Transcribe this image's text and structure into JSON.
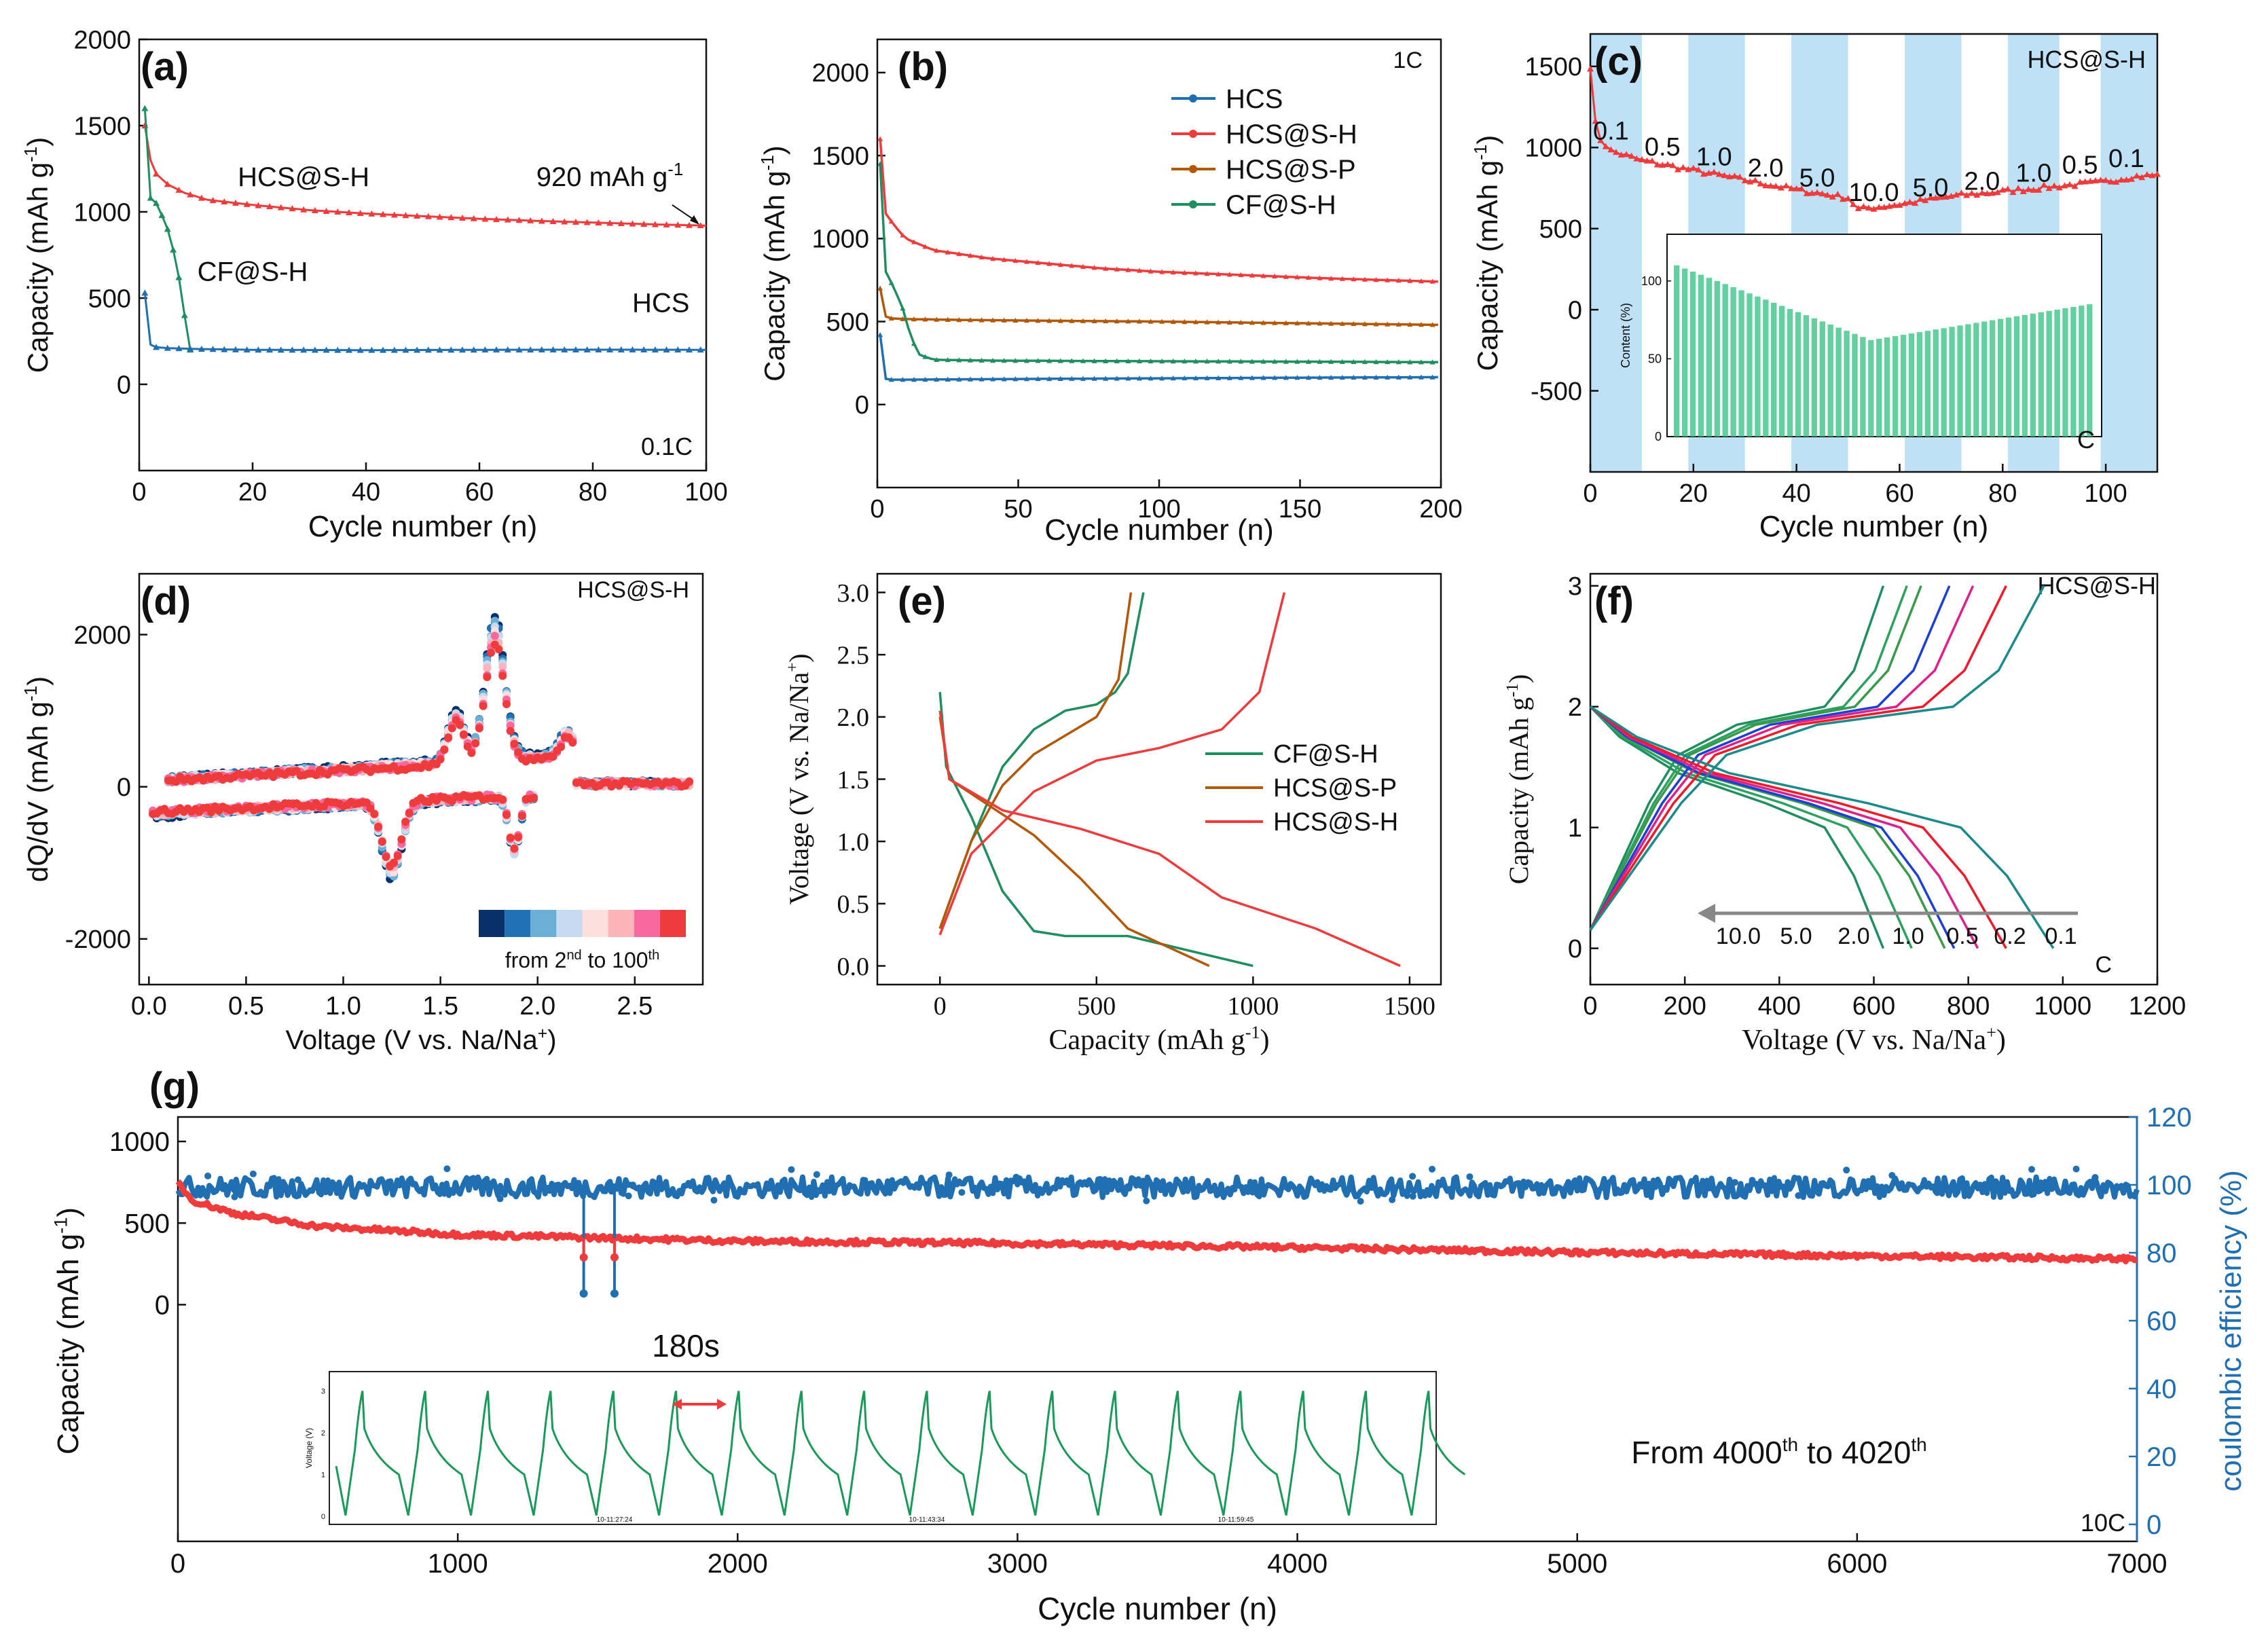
{
  "chart_data": [
    {
      "panel": "a",
      "type": "line",
      "label": "(a)",
      "xlabel": "Cycle number (n)",
      "ylabel": "Capacity (mAh g-1)",
      "ylabel_parts": {
        "main": "Capacity (mAh g",
        "sup": "-1",
        "end": ")"
      },
      "xlim": [
        0,
        100
      ],
      "ylim": [
        -500,
        2000
      ],
      "xticks": [
        0,
        20,
        40,
        60,
        80,
        100
      ],
      "yticks": [
        0,
        500,
        1000,
        1500,
        2000
      ],
      "corner_label": "0.1C",
      "annotation": {
        "text": "920 mAh g",
        "sup": "-1",
        "x": 99,
        "y": 920
      },
      "series": [
        {
          "name": "HCS@S-H",
          "color": "#ef3b3b",
          "x": [
            1,
            2,
            3,
            5,
            8,
            12,
            20,
            30,
            40,
            50,
            60,
            70,
            80,
            90,
            100
          ],
          "y": [
            1500,
            1300,
            1220,
            1160,
            1110,
            1070,
            1040,
            1010,
            990,
            975,
            960,
            948,
            938,
            928,
            920
          ]
        },
        {
          "name": "CF@S-H",
          "color": "#1f8f5f",
          "x": [
            1,
            2,
            3,
            4,
            5,
            6,
            7,
            8,
            9
          ],
          "y": [
            1600,
            1080,
            1050,
            980,
            900,
            780,
            620,
            400,
            200
          ]
        },
        {
          "name": "HCS",
          "color": "#1f6fb2",
          "x": [
            1,
            2,
            3,
            5,
            10,
            20,
            40,
            60,
            80,
            100
          ],
          "y": [
            530,
            230,
            215,
            210,
            205,
            200,
            198,
            200,
            201,
            200
          ]
        }
      ],
      "labels": [
        {
          "text": "HCS@S-H",
          "x": 29,
          "y": 1150
        },
        {
          "text": "CF@S-H",
          "x": 20,
          "y": 600
        },
        {
          "text": "HCS",
          "x": 92,
          "y": 420
        }
      ]
    },
    {
      "panel": "b",
      "type": "line",
      "label": "(b)",
      "xlabel": "Cycle number (n)",
      "ylabel": "Capacity (mAh g-1)",
      "ylabel_parts": {
        "main": "Capacity (mAh g",
        "sup": "-1",
        "end": ")"
      },
      "xlim": [
        0,
        200
      ],
      "ylim": [
        -500,
        2200
      ],
      "xticks": [
        0,
        50,
        100,
        150,
        200
      ],
      "yticks": [
        0,
        500,
        1000,
        1500,
        2000
      ],
      "corner_label": "1C",
      "legend": [
        "HCS",
        "HCS@S-H",
        "HCS@S-P",
        "CF@S-H"
      ],
      "series": [
        {
          "name": "HCS",
          "color": "#1f6fb2",
          "x": [
            1,
            2,
            4,
            10,
            30,
            60,
            100,
            150,
            200
          ],
          "y": [
            420,
            160,
            150,
            150,
            152,
            155,
            158,
            162,
            165
          ]
        },
        {
          "name": "HCS@S-H",
          "color": "#ef3b3b",
          "x": [
            1,
            3,
            6,
            10,
            20,
            40,
            60,
            80,
            100,
            130,
            160,
            200
          ],
          "y": [
            1600,
            1150,
            1080,
            1000,
            930,
            880,
            850,
            820,
            800,
            780,
            760,
            740
          ]
        },
        {
          "name": "HCS@S-P",
          "color": "#b35806",
          "x": [
            1,
            2,
            4,
            10,
            30,
            60,
            100,
            150,
            200
          ],
          "y": [
            700,
            540,
            520,
            515,
            510,
            505,
            500,
            490,
            480
          ]
        },
        {
          "name": "CF@S-H",
          "color": "#1f8f5f",
          "x": [
            1,
            3,
            6,
            9,
            12,
            15,
            20,
            40,
            80,
            120,
            160,
            200
          ],
          "y": [
            1450,
            800,
            700,
            580,
            400,
            300,
            270,
            265,
            262,
            260,
            258,
            255
          ]
        }
      ]
    },
    {
      "panel": "c",
      "type": "line",
      "label": "(c)",
      "xlabel": "Cycle number (n)",
      "ylabel": "Capacity (mAh g-1)",
      "ylabel_parts": {
        "main": "Capacity (mAh g",
        "sup": "-1",
        "end": ")"
      },
      "xlim": [
        0,
        110
      ],
      "ylim": [
        -1000,
        1700
      ],
      "xticks": [
        0,
        20,
        40,
        60,
        80,
        100
      ],
      "yticks": [
        -500,
        0,
        500,
        1000,
        1500
      ],
      "corner_label": "HCS@S-H",
      "shaded_ranges": [
        [
          0,
          10
        ],
        [
          19,
          30
        ],
        [
          39,
          50
        ],
        [
          61,
          72
        ],
        [
          81,
          91
        ],
        [
          99,
          110
        ]
      ],
      "rates": [
        {
          "text": "0.1",
          "x": 4,
          "y": 1050
        },
        {
          "text": "0.5",
          "x": 14,
          "y": 950
        },
        {
          "text": "1.0",
          "x": 24,
          "y": 890
        },
        {
          "text": "2.0",
          "x": 34,
          "y": 820
        },
        {
          "text": "5.0",
          "x": 44,
          "y": 760
        },
        {
          "text": "10.0",
          "x": 55,
          "y": 670
        },
        {
          "text": "5.0",
          "x": 66,
          "y": 700
        },
        {
          "text": "2.0",
          "x": 76,
          "y": 740
        },
        {
          "text": "1.0",
          "x": 86,
          "y": 790
        },
        {
          "text": "0.5",
          "x": 95,
          "y": 840
        },
        {
          "text": "0.1",
          "x": 104,
          "y": 880
        }
      ],
      "series": [
        {
          "name": "HCS@S-H",
          "color": "#ef3b3b",
          "x": [
            0,
            1,
            2,
            4,
            10,
            20,
            30,
            40,
            50,
            52,
            60,
            70,
            80,
            90,
            100,
            105,
            110
          ],
          "y": [
            1500,
            1150,
            1050,
            980,
            920,
            860,
            800,
            740,
            690,
            620,
            650,
            700,
            730,
            760,
            790,
            820,
            830
          ]
        }
      ],
      "inset": {
        "ylabel": "Content (%)",
        "yticks": [
          0,
          50,
          100
        ],
        "ylim": [
          0,
          130
        ],
        "corner_label": "C",
        "n_bars": 52,
        "start": 110,
        "min": 62,
        "min_at": 24,
        "end": 85
      }
    },
    {
      "panel": "d",
      "type": "scatter",
      "label": "(d)",
      "xlabel": "Voltage (V vs. Na/Na+)",
      "ylabel": "dQ/dV (mAh g-1)",
      "xlabel_parts": {
        "main": "Voltage (V vs. Na/Na",
        "sup": "+",
        "end": ")"
      },
      "ylabel_parts": {
        "main": "dQ/dV (mAh g",
        "sup": "-1",
        "end": ")"
      },
      "xlim": [
        -0.05,
        2.85
      ],
      "ylim": [
        -2600,
        2800
      ],
      "xticks": [
        0.0,
        0.5,
        1.0,
        1.5,
        2.0,
        2.5
      ],
      "yticks": [
        -2000,
        0,
        2000
      ],
      "corner_label": "HCS@S-H",
      "colorbar": {
        "colors": [
          "#08306b",
          "#2171b5",
          "#6baed6",
          "#c6dbef",
          "#fde0dd",
          "#fbb4b9",
          "#f768a1",
          "#ef3b3b"
        ],
        "label": "from 2",
        "sup1": "nd",
        "mid": " to 100",
        "sup2": "th"
      }
    },
    {
      "panel": "e",
      "type": "line",
      "label": "(e)",
      "xlabel": "Capacity (mAh g-1)",
      "ylabel": "Voltage (V vs. Na/Na+)",
      "xlabel_parts": {
        "main": "Capacity (mAh g",
        "sup": "-1",
        "end": ")"
      },
      "ylabel_parts": {
        "main": "Voltage (V vs. Na/Na",
        "sup": "+",
        "end": ")"
      },
      "xlim": [
        -200,
        1600
      ],
      "ylim": [
        -0.15,
        3.15
      ],
      "xticks": [
        0,
        500,
        1000,
        1500
      ],
      "yticks": [
        0.0,
        0.5,
        1.0,
        1.5,
        2.0,
        2.5,
        3.0
      ],
      "legend": [
        "CF@S-H",
        "HCS@S-P",
        "HCS@S-H"
      ],
      "series": [
        {
          "name": "CF@S-H",
          "color": "#1f8f5f",
          "discharge": [
            [
              0,
              2.2
            ],
            [
              20,
              1.6
            ],
            [
              100,
              1.2
            ],
            [
              200,
              0.6
            ],
            [
              300,
              0.28
            ],
            [
              400,
              0.24
            ],
            [
              600,
              0.24
            ],
            [
              750,
              0.15
            ],
            [
              1000,
              0.0
            ]
          ],
          "charge": [
            [
              0,
              0.3
            ],
            [
              100,
              1.0
            ],
            [
              200,
              1.6
            ],
            [
              300,
              1.9
            ],
            [
              400,
              2.05
            ],
            [
              500,
              2.1
            ],
            [
              560,
              2.2
            ],
            [
              600,
              2.35
            ],
            [
              650,
              3.0
            ]
          ]
        },
        {
          "name": "HCS@S-P",
          "color": "#b35806",
          "discharge": [
            [
              0,
              2.0
            ],
            [
              30,
              1.5
            ],
            [
              150,
              1.3
            ],
            [
              300,
              1.05
            ],
            [
              450,
              0.7
            ],
            [
              600,
              0.3
            ],
            [
              860,
              0.0
            ]
          ],
          "charge": [
            [
              0,
              0.3
            ],
            [
              100,
              1.0
            ],
            [
              200,
              1.45
            ],
            [
              300,
              1.7
            ],
            [
              400,
              1.85
            ],
            [
              500,
              2.0
            ],
            [
              570,
              2.3
            ],
            [
              610,
              3.0
            ]
          ]
        },
        {
          "name": "HCS@S-H",
          "color": "#ef3b3b",
          "discharge": [
            [
              0,
              2.05
            ],
            [
              30,
              1.5
            ],
            [
              200,
              1.25
            ],
            [
              450,
              1.1
            ],
            [
              700,
              0.9
            ],
            [
              900,
              0.55
            ],
            [
              1200,
              0.3
            ],
            [
              1470,
              0.0
            ]
          ],
          "charge": [
            [
              0,
              0.25
            ],
            [
              100,
              0.9
            ],
            [
              300,
              1.4
            ],
            [
              500,
              1.65
            ],
            [
              700,
              1.75
            ],
            [
              900,
              1.9
            ],
            [
              1020,
              2.2
            ],
            [
              1060,
              2.6
            ],
            [
              1100,
              3.0
            ]
          ]
        }
      ]
    },
    {
      "panel": "f",
      "type": "line",
      "label": "(f)",
      "xlabel": "Voltage (V vs. Na/Na+)",
      "ylabel": "Capacity (mAh g-1)",
      "xlabel_parts": {
        "main": "Voltage (V vs. Na/Na",
        "sup": "+",
        "end": ")"
      },
      "ylabel_parts": {
        "main": "Capacity (mAh g",
        "sup": "-1",
        "end": ")"
      },
      "xlim": [
        0,
        1200
      ],
      "ylim": [
        -0.3,
        3.1
      ],
      "xticks": [
        0,
        200,
        400,
        600,
        800,
        1000,
        1200
      ],
      "yticks": [
        0,
        1,
        2,
        3
      ],
      "corner_label": "HCS@S-H",
      "corner_label2": "C",
      "rates": [
        "10.0",
        "5.0",
        "2.0",
        "1.0",
        "0.5",
        "0.2",
        "0.1"
      ],
      "series": [
        {
          "name": "10.0",
          "color": "#1f8f5f",
          "discharge_end": 620,
          "charge_end": 620
        },
        {
          "name": "5.0",
          "color": "#2ca25f",
          "discharge_end": 680,
          "charge_end": 670
        },
        {
          "name": "2.0",
          "color": "#3a9a4a",
          "discharge_end": 750,
          "charge_end": 700
        },
        {
          "name": "1.0",
          "color": "#1c3fd8",
          "discharge_end": 770,
          "charge_end": 760
        },
        {
          "name": "0.5",
          "color": "#e0208a",
          "discharge_end": 820,
          "charge_end": 810
        },
        {
          "name": "0.2",
          "color": "#ef1b2b",
          "discharge_end": 880,
          "charge_end": 880
        },
        {
          "name": "0.1",
          "color": "#1a8a8a",
          "discharge_end": 980,
          "charge_end": 960
        }
      ]
    },
    {
      "panel": "g",
      "type": "line",
      "label": "(g)",
      "xlabel": "Cycle number (n)",
      "ylabel": "Capacity (mAh g-1)",
      "y2label": "coulombic efficiency (%)",
      "ylabel_parts": {
        "main": "Capacity (mAh g",
        "sup": "-1",
        "end": ")"
      },
      "xlim": [
        0,
        7000
      ],
      "ylim": [
        -1450,
        1150
      ],
      "y2lim": [
        -5,
        120
      ],
      "xticks": [
        0,
        1000,
        2000,
        3000,
        4000,
        5000,
        6000,
        7000
      ],
      "yticks": [
        0,
        500,
        1000
      ],
      "y2ticks": [
        0,
        20,
        40,
        60,
        80,
        100,
        120
      ],
      "corner_label": "10C",
      "pause_label": "180s",
      "note": {
        "a": "From 4000",
        "sup1": "th",
        "b": " to 4020",
        "sup2": "th"
      },
      "series": [
        {
          "name": "Capacity",
          "color": "#ef3b3b",
          "x": [
            0,
            50,
            200,
            500,
            1000,
            1500,
            2000,
            3000,
            4000,
            5000,
            6000,
            7000
          ],
          "y": [
            750,
            640,
            560,
            480,
            430,
            410,
            390,
            375,
            350,
            320,
            300,
            280
          ]
        },
        {
          "name": "Coulombic efficiency",
          "color": "#1f6fb2",
          "x": [
            0,
            7000
          ],
          "y": [
            100,
            99
          ]
        }
      ],
      "inset": {
        "ylabel": "Voltage (V)",
        "yticks": [
          0,
          1,
          2,
          3
        ],
        "timestamps": [
          "10-11:27:24",
          "10-11:43:34",
          "10-11:59:45"
        ],
        "n_cycles": 17
      }
    }
  ]
}
